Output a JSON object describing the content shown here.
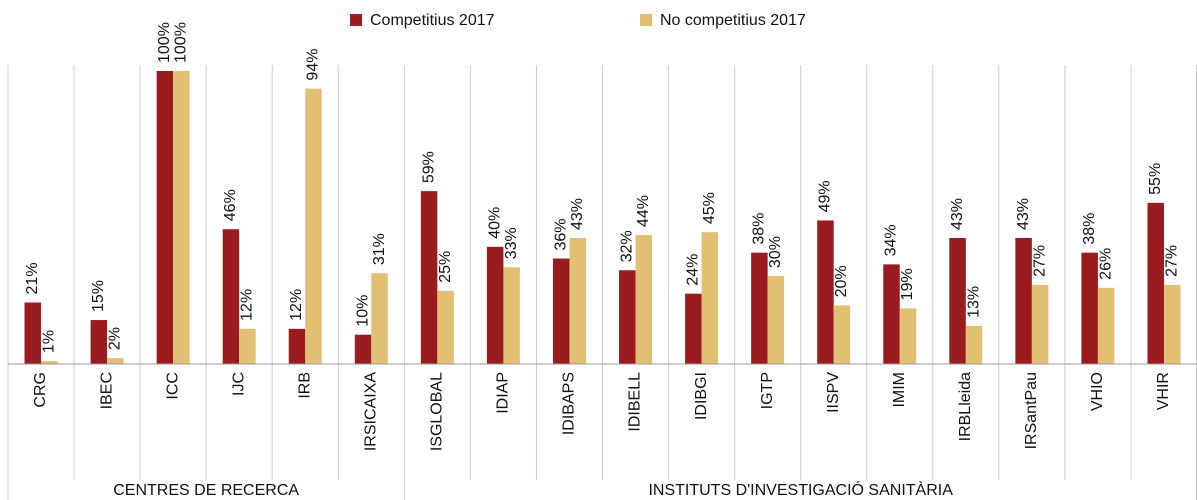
{
  "chart_data": {
    "type": "bar",
    "groups": [
      {
        "name": "CENTRES DE RECERCA",
        "categories": [
          "CRG",
          "IBEC",
          "ICC",
          "IJC",
          "IRB",
          "IRSICAIXA"
        ]
      },
      {
        "name": "INSTITUTS D'INVESTIGACIÓ SANITÀRIA",
        "categories": [
          "ISGLOBAL",
          "IDIAP",
          "IDIBAPS",
          "IDIBELL",
          "IDIBGI",
          "IGTP",
          "IISPV",
          "IMIM",
          "IRBLleida",
          "IRSantPau",
          "VHIO",
          "VHIR"
        ]
      }
    ],
    "series": [
      {
        "name": "Competitius 2017",
        "color": "#9a1c1f",
        "values": [
          21,
          15,
          100,
          46,
          12,
          10,
          59,
          40,
          36,
          32,
          24,
          38,
          49,
          34,
          43,
          43,
          38,
          55
        ],
        "value_labels": [
          "21%",
          "15%",
          "100%",
          "46%",
          "12%",
          "10%",
          "59%",
          "40%",
          "36%",
          "32%",
          "24%",
          "38%",
          "49%",
          "34%",
          "43%",
          "43%",
          "38%",
          "55%"
        ]
      },
      {
        "name": "No competitius 2017",
        "color": "#e2c073",
        "values": [
          1,
          2,
          100,
          12,
          94,
          31,
          25,
          33,
          43,
          44,
          45,
          30,
          20,
          19,
          13,
          27,
          26,
          27
        ],
        "value_labels": [
          "1%",
          "2%",
          "100%",
          "12%",
          "94%",
          "31%",
          "25%",
          "33%",
          "43%",
          "44%",
          "45%",
          "30%",
          "20%",
          "19%",
          "13%",
          "27%",
          "26%",
          "27%"
        ]
      }
    ],
    "ylim": [
      0,
      100
    ]
  }
}
